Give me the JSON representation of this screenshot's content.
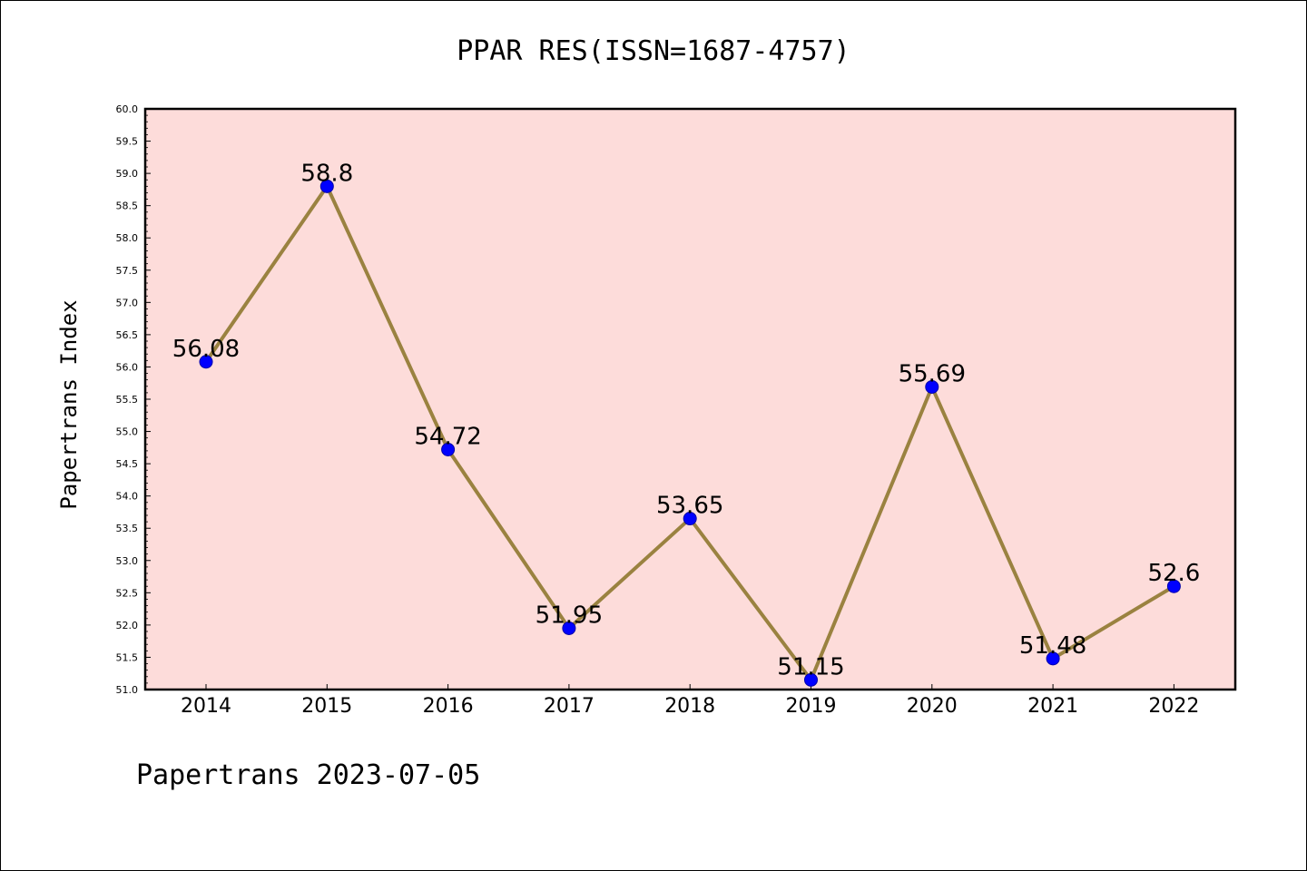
{
  "chart_data": {
    "type": "line",
    "title": "PPAR RES(ISSN=1687-4757)",
    "ylabel": "Papertrans Index",
    "xlabel": "",
    "footer": "Papertrans 2023-07-05",
    "categories": [
      "2014",
      "2015",
      "2016",
      "2017",
      "2018",
      "2019",
      "2020",
      "2021",
      "2022"
    ],
    "series": [
      {
        "values": [
          56.08,
          58.8,
          54.72,
          51.95,
          53.65,
          51.15,
          55.69,
          51.48,
          52.6
        ],
        "data_labels": [
          "56.08",
          "58.8",
          "54.72",
          "51.95",
          "53.65",
          "51.15",
          "55.69",
          "51.48",
          "52.6"
        ]
      }
    ],
    "ylim": [
      51.0,
      60.0
    ],
    "yticks": [
      "51.0",
      "51.5",
      "52.0",
      "52.5",
      "53.0",
      "53.5",
      "54.0",
      "54.5",
      "55.0",
      "55.5",
      "56.0",
      "56.5",
      "57.0",
      "57.5",
      "58.0",
      "58.5",
      "59.0",
      "59.5",
      "60.0"
    ],
    "grid": false,
    "colors": {
      "plot_background": "#fddcda",
      "line": "#9a8240",
      "marker": "#0000ff"
    }
  }
}
